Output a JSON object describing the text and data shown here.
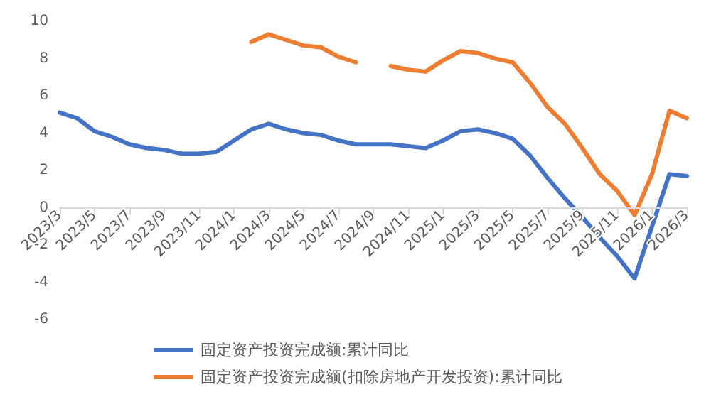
{
  "chart_data": {
    "type": "line",
    "categories": [
      "2023/3",
      null,
      "2023/5",
      null,
      "2023/7",
      null,
      "2023/9",
      null,
      "2023/11",
      null,
      "2024/1",
      null,
      "2024/3",
      null,
      "2024/5",
      null,
      "2024/7",
      null,
      "2024/9",
      null,
      "2024/11",
      null,
      "2025/1",
      null,
      "2025/3",
      null,
      "2025/5",
      null,
      "2025/7",
      null,
      "2025/9",
      null,
      "2025/11",
      null,
      "2026/1",
      null,
      "2026/3"
    ],
    "series": [
      {
        "name": "固定资产投资完成额:累计同比",
        "color": "#4472c4",
        "values": [
          5.1,
          4.8,
          4.1,
          3.8,
          3.4,
          3.2,
          3.1,
          2.9,
          2.9,
          3.0,
          3.6,
          4.2,
          4.5,
          4.2,
          4.0,
          3.9,
          3.6,
          3.4,
          3.4,
          3.4,
          3.3,
          3.2,
          3.6,
          4.1,
          4.2,
          4.0,
          3.7,
          2.8,
          1.6,
          0.5,
          -0.5,
          -1.6,
          -2.6,
          -3.8,
          -1.0,
          1.8,
          1.7
        ]
      },
      {
        "name": "固定资产投资完成额(扣除房地产开发投资):累计同比",
        "color": "#ed7d31",
        "values": [
          null,
          null,
          null,
          null,
          null,
          null,
          null,
          null,
          null,
          null,
          null,
          8.9,
          9.3,
          9.0,
          8.7,
          8.6,
          8.1,
          7.8,
          null,
          7.6,
          7.4,
          7.3,
          7.9,
          8.4,
          8.3,
          8.0,
          7.8,
          6.7,
          5.4,
          4.5,
          3.2,
          1.8,
          0.9,
          -0.4,
          1.8,
          5.2,
          4.8
        ]
      }
    ],
    "ylim": [
      -6,
      10
    ],
    "yticks": [
      -6,
      -4,
      -2,
      0,
      2,
      4,
      6,
      8,
      10
    ],
    "grid": false,
    "legend": "bottom",
    "marker": "none",
    "line_style": "solid"
  }
}
